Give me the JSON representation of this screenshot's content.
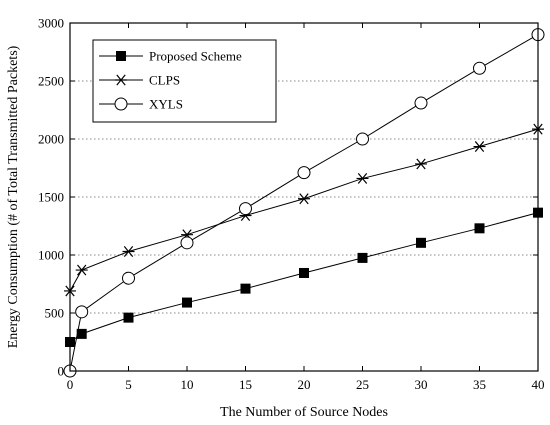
{
  "chart_data": {
    "type": "line",
    "xlabel": "The Number of Source Nodes",
    "ylabel": "Energy Consumption (# of Total Transmitted Packets)",
    "xlim": [
      0,
      40
    ],
    "ylim": [
      0,
      3000
    ],
    "xticks": [
      0,
      5,
      10,
      15,
      20,
      25,
      30,
      35,
      40
    ],
    "yticks": [
      0,
      500,
      1000,
      1500,
      2000,
      2500,
      3000
    ],
    "grid": "horizontal dotted",
    "legend_position": "top-left",
    "series": [
      {
        "name": "Proposed Scheme",
        "marker": "filled-square",
        "color": "#000000",
        "x": [
          0,
          1,
          5,
          10,
          15,
          20,
          25,
          30,
          35,
          40
        ],
        "y": [
          250,
          320,
          460,
          590,
          710,
          845,
          975,
          1105,
          1230,
          1365
        ]
      },
      {
        "name": "CLPS",
        "marker": "asterisk",
        "color": "#000000",
        "x": [
          0,
          1,
          5,
          10,
          15,
          20,
          25,
          30,
          35,
          40
        ],
        "y": [
          690,
          870,
          1030,
          1175,
          1340,
          1485,
          1660,
          1785,
          1935,
          2085
        ]
      },
      {
        "name": "XYLS",
        "marker": "open-circle",
        "color": "#000000",
        "x": [
          0,
          1,
          5,
          10,
          15,
          20,
          25,
          30,
          35,
          40
        ],
        "y": [
          0,
          510,
          800,
          1105,
          1400,
          1710,
          2000,
          2310,
          2610,
          2900
        ]
      }
    ]
  }
}
